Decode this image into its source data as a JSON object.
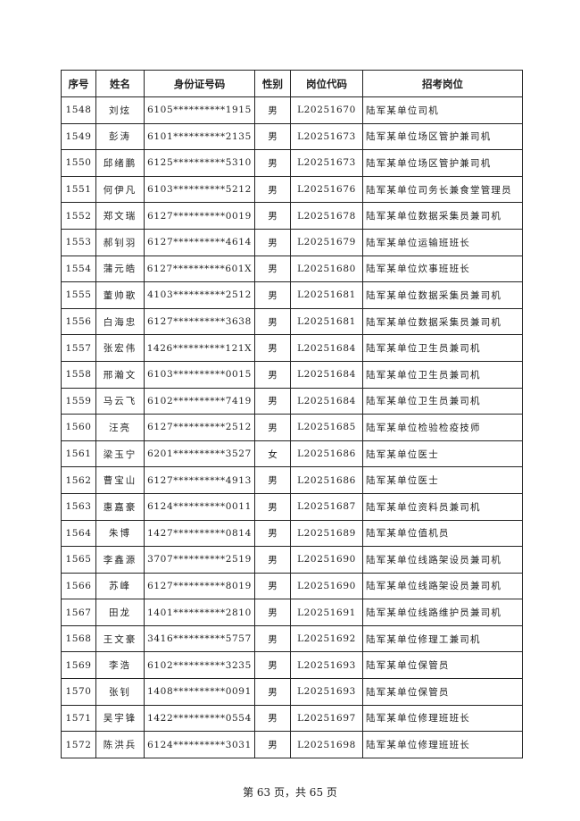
{
  "table": {
    "headers": [
      "序号",
      "姓名",
      "身份证号码",
      "性别",
      "岗位代码",
      "招考岗位"
    ],
    "rows": [
      [
        "1548",
        "刘炫",
        "6105**********1915",
        "男",
        "L20251670",
        "陆军某单位司机"
      ],
      [
        "1549",
        "彭涛",
        "6101**********2135",
        "男",
        "L20251673",
        "陆军某单位场区管护兼司机"
      ],
      [
        "1550",
        "邱绪鹏",
        "6125**********5310",
        "男",
        "L20251673",
        "陆军某单位场区管护兼司机"
      ],
      [
        "1551",
        "何伊凡",
        "6103**********5212",
        "男",
        "L20251676",
        "陆军某单位司务长兼食堂管理员"
      ],
      [
        "1552",
        "郑文瑞",
        "6127**********0019",
        "男",
        "L20251678",
        "陆军某单位数据采集员兼司机"
      ],
      [
        "1553",
        "郝钊羽",
        "6127**********4614",
        "男",
        "L20251679",
        "陆军某单位运输班班长"
      ],
      [
        "1554",
        "蒲元皓",
        "6127**********601X",
        "男",
        "L20251680",
        "陆军某单位炊事班班长"
      ],
      [
        "1555",
        "董帅歌",
        "4103**********2512",
        "男",
        "L20251681",
        "陆军某单位数据采集员兼司机"
      ],
      [
        "1556",
        "白海忠",
        "6127**********3638",
        "男",
        "L20251681",
        "陆军某单位数据采集员兼司机"
      ],
      [
        "1557",
        "张宏伟",
        "1426**********121X",
        "男",
        "L20251684",
        "陆军某单位卫生员兼司机"
      ],
      [
        "1558",
        "邢瀚文",
        "6103**********0015",
        "男",
        "L20251684",
        "陆军某单位卫生员兼司机"
      ],
      [
        "1559",
        "马云飞",
        "6102**********7419",
        "男",
        "L20251684",
        "陆军某单位卫生员兼司机"
      ],
      [
        "1560",
        "汪亮",
        "6127**********2512",
        "男",
        "L20251685",
        "陆军某单位检验检疫技师"
      ],
      [
        "1561",
        "梁玉宁",
        "6201**********3527",
        "女",
        "L20251686",
        "陆军某单位医士"
      ],
      [
        "1562",
        "曹宝山",
        "6127**********4913",
        "男",
        "L20251686",
        "陆军某单位医士"
      ],
      [
        "1563",
        "惠嘉豪",
        "6124**********0011",
        "男",
        "L20251687",
        "陆军某单位资料员兼司机"
      ],
      [
        "1564",
        "朱博",
        "1427**********0814",
        "男",
        "L20251689",
        "陆军某单位值机员"
      ],
      [
        "1565",
        "李鑫源",
        "3707**********2519",
        "男",
        "L20251690",
        "陆军某单位线路架设员兼司机"
      ],
      [
        "1566",
        "苏峰",
        "6127**********8019",
        "男",
        "L20251690",
        "陆军某单位线路架设员兼司机"
      ],
      [
        "1567",
        "田龙",
        "1401**********2810",
        "男",
        "L20251691",
        "陆军某单位线路维护员兼司机"
      ],
      [
        "1568",
        "王文豪",
        "3416**********5757",
        "男",
        "L20251692",
        "陆军某单位修理工兼司机"
      ],
      [
        "1569",
        "李浩",
        "6102**********3235",
        "男",
        "L20251693",
        "陆军某单位保管员"
      ],
      [
        "1570",
        "张钊",
        "1408**********0091",
        "男",
        "L20251693",
        "陆军某单位保管员"
      ],
      [
        "1571",
        "吴宇锋",
        "1422**********0554",
        "男",
        "L20251697",
        "陆军某单位修理班班长"
      ],
      [
        "1572",
        "陈洪兵",
        "6124**********3031",
        "男",
        "L20251698",
        "陆军某单位修理班班长"
      ]
    ]
  },
  "footer": {
    "page_text": "第 63 页，共 65 页"
  }
}
